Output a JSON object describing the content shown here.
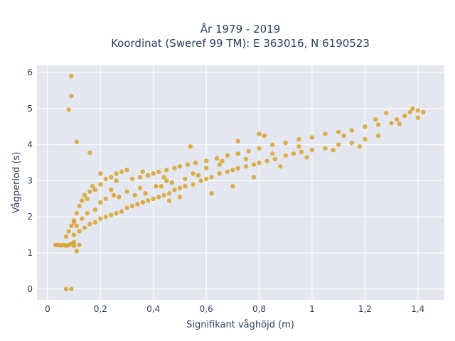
{
  "chart_data": {
    "type": "scatter",
    "title": "År 1979 - 2019",
    "subtitle": "Koordinat (Sweref 99 TM): E 363016, N 6190523",
    "xlabel": "Signifikant våghöjd (m)",
    "ylabel": "Vågperiod (s)",
    "xlim": [
      -0.04,
      1.5
    ],
    "ylim": [
      -0.3,
      6.2
    ],
    "x_ticks": [
      0,
      0.2,
      0.4,
      0.6,
      0.8,
      1,
      1.2,
      1.4
    ],
    "x_tick_labels": [
      "0",
      "0,2",
      "0,4",
      "0,6",
      "0,8",
      "1",
      "1,2",
      "1,4"
    ],
    "y_ticks": [
      0,
      1,
      2,
      3,
      4,
      5,
      6
    ],
    "y_tick_labels": [
      "0",
      "1",
      "2",
      "3",
      "4",
      "5",
      "6"
    ],
    "grid": true,
    "point_color": "#D4A020",
    "plot_background": "#E5E7F0",
    "series": [
      {
        "points": [
          [
            0.03,
            1.22
          ],
          [
            0.04,
            1.22
          ],
          [
            0.05,
            1.21
          ],
          [
            0.06,
            1.22
          ],
          [
            0.07,
            1.2
          ],
          [
            0.08,
            1.22
          ],
          [
            0.09,
            1.25
          ],
          [
            0.1,
            1.2
          ],
          [
            0.12,
            1.22
          ],
          [
            0.07,
            1.45
          ],
          [
            0.08,
            1.6
          ],
          [
            0.09,
            1.75
          ],
          [
            0.1,
            1.9
          ],
          [
            0.11,
            2.1
          ],
          [
            0.12,
            2.3
          ],
          [
            0.13,
            2.45
          ],
          [
            0.14,
            2.6
          ],
          [
            0.15,
            2.5
          ],
          [
            0.16,
            2.7
          ],
          [
            0.17,
            2.85
          ],
          [
            0.18,
            2.75
          ],
          [
            0.2,
            2.9
          ],
          [
            0.22,
            3.05
          ],
          [
            0.24,
            3.1
          ],
          [
            0.26,
            3.2
          ],
          [
            0.28,
            3.25
          ],
          [
            0.3,
            3.3
          ],
          [
            0.1,
            1.5
          ],
          [
            0.12,
            1.6
          ],
          [
            0.14,
            1.7
          ],
          [
            0.16,
            1.8
          ],
          [
            0.18,
            1.85
          ],
          [
            0.2,
            1.95
          ],
          [
            0.22,
            2.0
          ],
          [
            0.24,
            2.05
          ],
          [
            0.26,
            2.1
          ],
          [
            0.28,
            2.15
          ],
          [
            0.3,
            2.25
          ],
          [
            0.32,
            2.3
          ],
          [
            0.34,
            2.35
          ],
          [
            0.36,
            2.4
          ],
          [
            0.38,
            2.45
          ],
          [
            0.4,
            2.5
          ],
          [
            0.42,
            2.55
          ],
          [
            0.44,
            2.6
          ],
          [
            0.46,
            2.65
          ],
          [
            0.48,
            2.75
          ],
          [
            0.5,
            2.8
          ],
          [
            0.52,
            2.85
          ],
          [
            0.55,
            2.9
          ],
          [
            0.58,
            3.0
          ],
          [
            0.6,
            3.05
          ],
          [
            0.62,
            3.1
          ],
          [
            0.65,
            3.2
          ],
          [
            0.68,
            3.25
          ],
          [
            0.7,
            3.3
          ],
          [
            0.72,
            3.35
          ],
          [
            0.75,
            3.4
          ],
          [
            0.78,
            3.45
          ],
          [
            0.8,
            3.5
          ],
          [
            0.83,
            3.55
          ],
          [
            0.86,
            3.6
          ],
          [
            0.9,
            3.7
          ],
          [
            0.93,
            3.75
          ],
          [
            0.96,
            3.8
          ],
          [
            1.0,
            3.85
          ],
          [
            1.05,
            3.9
          ],
          [
            1.1,
            4.0
          ],
          [
            1.15,
            4.05
          ],
          [
            1.2,
            4.15
          ],
          [
            1.25,
            4.25
          ],
          [
            0.32,
            3.05
          ],
          [
            0.35,
            3.1
          ],
          [
            0.38,
            3.15
          ],
          [
            0.4,
            3.2
          ],
          [
            0.42,
            3.25
          ],
          [
            0.45,
            3.3
          ],
          [
            0.48,
            3.35
          ],
          [
            0.5,
            3.4
          ],
          [
            0.53,
            3.45
          ],
          [
            0.56,
            3.5
          ],
          [
            0.6,
            3.55
          ],
          [
            0.64,
            3.62
          ],
          [
            0.68,
            3.7
          ],
          [
            0.72,
            3.75
          ],
          [
            0.76,
            3.82
          ],
          [
            0.8,
            3.9
          ],
          [
            0.85,
            4.0
          ],
          [
            0.9,
            4.05
          ],
          [
            0.95,
            4.15
          ],
          [
            1.0,
            4.2
          ],
          [
            1.05,
            4.3
          ],
          [
            1.1,
            4.35
          ],
          [
            1.15,
            4.4
          ],
          [
            1.2,
            4.5
          ],
          [
            1.25,
            4.55
          ],
          [
            1.3,
            4.6
          ],
          [
            1.32,
            4.7
          ],
          [
            1.35,
            4.8
          ],
          [
            1.37,
            4.9
          ],
          [
            1.38,
            5.0
          ],
          [
            1.4,
            4.95
          ],
          [
            1.42,
            4.9
          ],
          [
            1.4,
            4.75
          ],
          [
            1.28,
            4.88
          ],
          [
            1.33,
            4.58
          ],
          [
            1.24,
            4.7
          ],
          [
            0.09,
            5.9
          ],
          [
            0.09,
            5.35
          ],
          [
            0.08,
            4.97
          ],
          [
            0.11,
            4.08
          ],
          [
            0.16,
            3.78
          ],
          [
            0.07,
            0.0
          ],
          [
            0.09,
            0.0
          ],
          [
            0.1,
            1.85
          ],
          [
            0.11,
            1.05
          ],
          [
            0.25,
            2.6
          ],
          [
            0.3,
            2.7
          ],
          [
            0.35,
            2.8
          ],
          [
            0.45,
            3.0
          ],
          [
            0.55,
            3.2
          ],
          [
            0.65,
            3.45
          ],
          [
            0.75,
            3.6
          ],
          [
            0.85,
            3.75
          ],
          [
            0.95,
            3.95
          ],
          [
            0.2,
            2.4
          ],
          [
            0.22,
            2.5
          ],
          [
            0.27,
            2.55
          ],
          [
            0.33,
            2.6
          ],
          [
            0.37,
            2.65
          ],
          [
            0.43,
            2.85
          ],
          [
            0.47,
            2.95
          ],
          [
            0.52,
            3.05
          ],
          [
            0.57,
            3.15
          ],
          [
            0.18,
            2.2
          ],
          [
            0.15,
            2.1
          ],
          [
            0.13,
            1.95
          ],
          [
            0.11,
            1.75
          ],
          [
            0.1,
            1.3
          ],
          [
            0.2,
            3.2
          ],
          [
            0.24,
            2.75
          ],
          [
            0.36,
            3.25
          ],
          [
            0.26,
            3.0
          ],
          [
            0.41,
            2.85
          ],
          [
            0.46,
            2.45
          ],
          [
            0.5,
            2.55
          ],
          [
            0.62,
            2.65
          ],
          [
            0.7,
            2.85
          ],
          [
            0.78,
            3.1
          ],
          [
            0.88,
            3.4
          ],
          [
            0.98,
            3.65
          ],
          [
            1.08,
            3.85
          ],
          [
            1.18,
            3.95
          ],
          [
            0.8,
            4.3
          ],
          [
            0.82,
            4.25
          ],
          [
            0.54,
            3.95
          ],
          [
            0.72,
            4.1
          ],
          [
            1.12,
            4.25
          ],
          [
            0.44,
            3.1
          ],
          [
            0.6,
            3.35
          ],
          [
            0.66,
            3.55
          ]
        ]
      }
    ]
  }
}
